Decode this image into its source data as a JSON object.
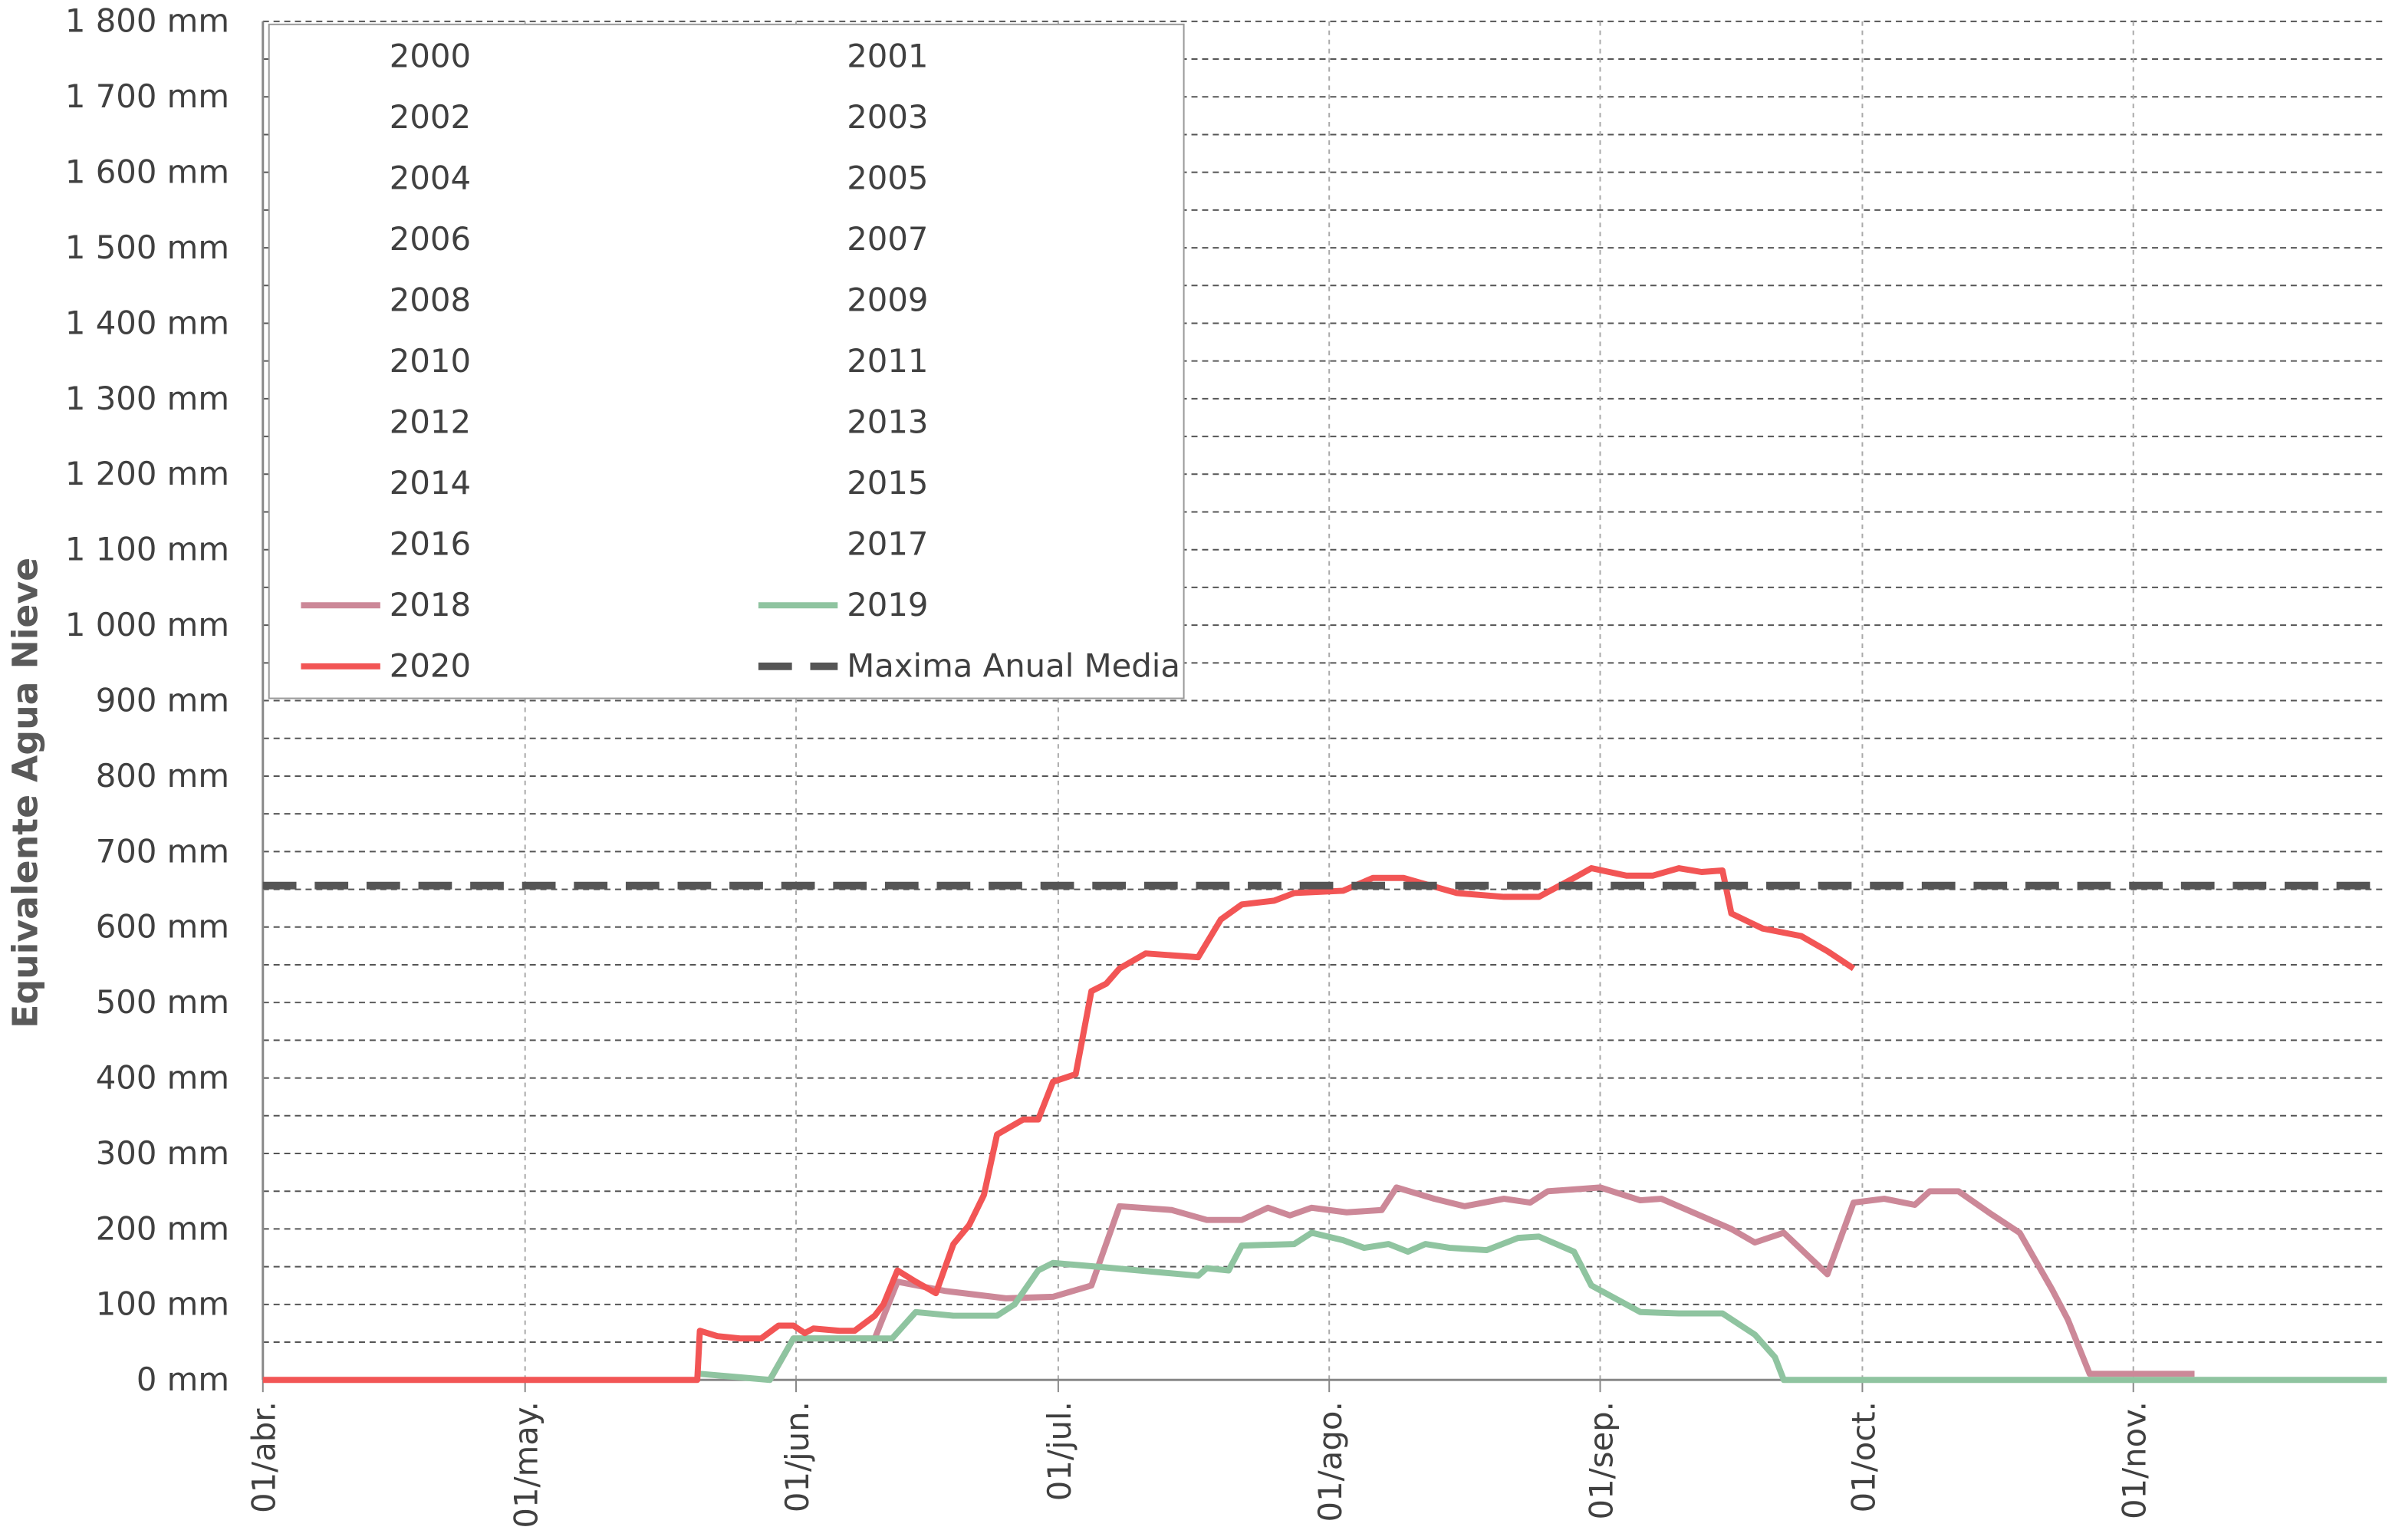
{
  "chart_data": {
    "type": "line",
    "y_label": "Equivalente Agua Nieve",
    "xlim": [
      0,
      243
    ],
    "xticks": [
      {
        "value": 0,
        "label": "01/abr."
      },
      {
        "value": 30,
        "label": "01/may."
      },
      {
        "value": 61,
        "label": "01/jun."
      },
      {
        "value": 91,
        "label": "01/jul."
      },
      {
        "value": 122,
        "label": "01/ago."
      },
      {
        "value": 153,
        "label": "01/sep."
      },
      {
        "value": 183,
        "label": "01/oct."
      },
      {
        "value": 214,
        "label": "01/nov."
      }
    ],
    "ylim": [
      0,
      1800
    ],
    "yticks": [
      {
        "value": 0,
        "label": "0 mm"
      },
      {
        "value": 100,
        "label": "100 mm"
      },
      {
        "value": 200,
        "label": "200 mm"
      },
      {
        "value": 300,
        "label": "300 mm"
      },
      {
        "value": 400,
        "label": "400 mm"
      },
      {
        "value": 500,
        "label": "500 mm"
      },
      {
        "value": 600,
        "label": "600 mm"
      },
      {
        "value": 700,
        "label": "700 mm"
      },
      {
        "value": 800,
        "label": "800 mm"
      },
      {
        "value": 900,
        "label": "900 mm"
      },
      {
        "value": 1000,
        "label": "1 000 mm"
      },
      {
        "value": 1100,
        "label": "1 100 mm"
      },
      {
        "value": 1200,
        "label": "1 200 mm"
      },
      {
        "value": 1300,
        "label": "1 300 mm"
      },
      {
        "value": 1400,
        "label": "1 400 mm"
      },
      {
        "value": 1500,
        "label": "1 500 mm"
      },
      {
        "value": 1600,
        "label": "1 600 mm"
      },
      {
        "value": 1700,
        "label": "1 700 mm"
      },
      {
        "value": 1800,
        "label": "1 800 mm"
      }
    ],
    "grid": true,
    "legend": "upper left",
    "series": [
      {
        "name": "2000",
        "x": [],
        "values": []
      },
      {
        "name": "2001",
        "x": [],
        "values": []
      },
      {
        "name": "2002",
        "x": [],
        "values": []
      },
      {
        "name": "2003",
        "x": [],
        "values": []
      },
      {
        "name": "2004",
        "x": [],
        "values": []
      },
      {
        "name": "2005",
        "x": [],
        "values": []
      },
      {
        "name": "2006",
        "x": [],
        "values": []
      },
      {
        "name": "2007",
        "x": [],
        "values": []
      },
      {
        "name": "2008",
        "x": [],
        "values": []
      },
      {
        "name": "2009",
        "x": [],
        "values": []
      },
      {
        "name": "2010",
        "x": [],
        "values": []
      },
      {
        "name": "2011",
        "x": [],
        "values": []
      },
      {
        "name": "2012",
        "x": [],
        "values": []
      },
      {
        "name": "2013",
        "x": [],
        "values": []
      },
      {
        "name": "2014",
        "x": [],
        "values": []
      },
      {
        "name": "2015",
        "x": [],
        "values": []
      },
      {
        "name": "2016",
        "x": [],
        "values": []
      },
      {
        "name": "2017",
        "x": [],
        "values": []
      },
      {
        "name": "2018",
        "color": "#cc8898",
        "x": [
          58,
          60.7,
          70,
          72.6,
          78,
          85,
          90.4,
          94.8,
          98,
          104,
          108,
          112,
          115,
          117.5,
          120,
          124,
          128,
          129.7,
          134,
          137.5,
          142,
          145,
          147,
          153,
          157.6,
          160,
          168,
          170.7,
          174,
          179,
          182,
          185.5,
          189,
          190.7,
          194,
          197.7,
          201,
          204.7,
          206.5,
          209,
          214,
          221
        ],
        "values": [
          0,
          55,
          55,
          130,
          118,
          108,
          110,
          125,
          230,
          225,
          212,
          212,
          228,
          218,
          228,
          222,
          225,
          255,
          240,
          230,
          240,
          235,
          250,
          255,
          238,
          240,
          200,
          182,
          195,
          140,
          235,
          240,
          232,
          250,
          250,
          220,
          195,
          120,
          80,
          8,
          8,
          8
        ]
      },
      {
        "name": "2019",
        "color": "#8fc4a0",
        "x": [
          50,
          58,
          60.7,
          65,
          72,
          74.7,
          79,
          84,
          86,
          88.7,
          90.4,
          95.6,
          107,
          108,
          110.5,
          112,
          118,
          120,
          123.6,
          126,
          128.8,
          131,
          133,
          135.8,
          140,
          143.6,
          146,
          150,
          152,
          157.6,
          162,
          167,
          170.7,
          173,
          174,
          243
        ],
        "values": [
          8,
          0,
          55,
          55,
          55,
          90,
          85,
          85,
          100,
          145,
          155,
          150,
          138,
          148,
          145,
          178,
          180,
          195,
          185,
          175,
          180,
          170,
          180,
          175,
          172,
          188,
          190,
          170,
          125,
          90,
          88,
          88,
          60,
          30,
          0,
          0
        ]
      },
      {
        "name": "2020",
        "color": "#f25555",
        "x": [
          0,
          49.7,
          50,
          52,
          54.6,
          57,
          59,
          60.7,
          62,
          63,
          66,
          67.7,
          70,
          71,
          72.6,
          74.7,
          77,
          79,
          80.8,
          82.5,
          84,
          87,
          88.7,
          90.4,
          93,
          94.8,
          96.5,
          98,
          101,
          107,
          109.6,
          112,
          115.7,
          118,
          123.6,
          127,
          130.5,
          136.6,
          142,
          146,
          150,
          152,
          156,
          159,
          162,
          164.6,
          167,
          168,
          171.6,
          176,
          179,
          182
        ],
        "values": [
          0,
          0,
          65,
          58,
          55,
          55,
          72,
          72,
          62,
          68,
          65,
          65,
          85,
          100,
          145,
          130,
          115,
          180,
          205,
          245,
          325,
          345,
          345,
          395,
          405,
          515,
          525,
          545,
          565,
          560,
          610,
          630,
          635,
          645,
          648,
          665,
          665,
          645,
          640,
          640,
          665,
          678,
          668,
          668,
          678,
          673,
          675,
          618,
          598,
          588,
          568,
          545
        ]
      },
      {
        "name": "Maxima Anual Media",
        "color": "#555555",
        "style": "dashed",
        "x": [
          0,
          243
        ],
        "values": [
          655,
          655
        ]
      }
    ]
  }
}
